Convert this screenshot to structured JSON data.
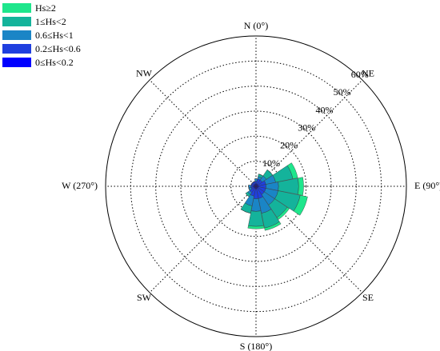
{
  "chart_data": {
    "type": "rose",
    "categories": [
      "N (0°)",
      null,
      "NE",
      null,
      "E (90°)",
      null,
      "SE",
      null,
      "S (180°)",
      null,
      "SW",
      null,
      "W (270°)",
      null,
      "NW",
      null
    ],
    "series": [
      {
        "name": "Hs≥2",
        "color": "#1ee68c",
        "values": [
          0,
          0,
          0,
          2,
          2,
          3,
          1,
          1,
          1,
          0,
          0,
          0,
          0,
          0,
          0,
          0
        ]
      },
      {
        "name": "1≤Hs<2",
        "color": "#14b39b",
        "values": [
          0,
          1,
          3,
          7,
          8,
          9,
          6,
          6,
          6,
          3,
          1,
          0,
          0,
          0,
          0,
          0
        ]
      },
      {
        "name": "0.6≤Hs<1",
        "color": "#1a85c6",
        "values": [
          1,
          1,
          2,
          4,
          5,
          5,
          5,
          6,
          5,
          4,
          1,
          1,
          1,
          0,
          0,
          0
        ]
      },
      {
        "name": "0.2≤Hs<0.6",
        "color": "#1f3fdf",
        "values": [
          1,
          2,
          2,
          3,
          3,
          3,
          3,
          4,
          4,
          3,
          2,
          1,
          1,
          1,
          1,
          1
        ]
      },
      {
        "name": "0≤Hs<0.2",
        "color": "#0000ff",
        "values": [
          1,
          1,
          1,
          1,
          1,
          1,
          1,
          1,
          1,
          1,
          1,
          1,
          1,
          1,
          1,
          1
        ]
      }
    ],
    "rlim": [
      0,
      60
    ],
    "rticks": [
      {
        "value": 10,
        "label": "10%"
      },
      {
        "value": 20,
        "label": "20%"
      },
      {
        "value": 30,
        "label": "30%"
      },
      {
        "value": 40,
        "label": "40%"
      },
      {
        "value": 50,
        "label": "50%"
      },
      {
        "value": 60,
        "label": "60%"
      }
    ],
    "grid": true
  }
}
